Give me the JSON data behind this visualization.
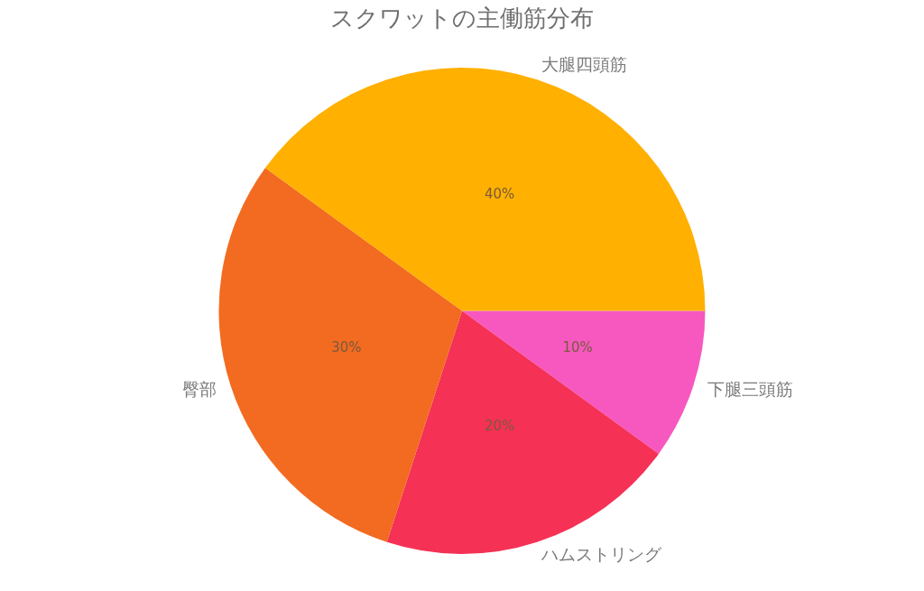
{
  "chart_data": {
    "type": "pie",
    "title": "スクワットの主働筋分布",
    "categories": [
      "大腿四頭筋",
      "臀部",
      "ハムストリング",
      "下腿三頭筋"
    ],
    "values": [
      40,
      30,
      20,
      10
    ],
    "value_labels": [
      "40%",
      "30%",
      "20%",
      "10%"
    ],
    "colors": [
      "#ffb000",
      "#f26b21",
      "#f53155",
      "#f658c0"
    ]
  }
}
